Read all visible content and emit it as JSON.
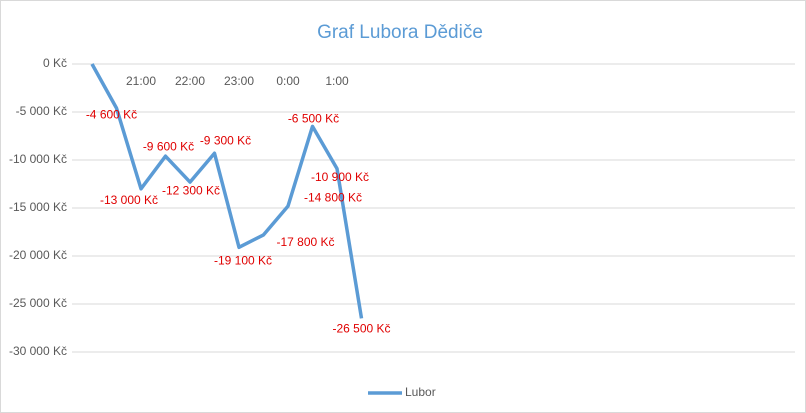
{
  "chart_data": {
    "type": "line",
    "title": "Graf Lubora Dědiče",
    "categories": [
      null,
      null,
      "21:00",
      null,
      "22:00",
      null,
      "23:00",
      null,
      "0:00",
      null,
      "1:00",
      null
    ],
    "series": [
      {
        "name": "Lubor",
        "color": "#5b9bd5",
        "values": [
          0,
          -4600,
          -13000,
          -9600,
          -12300,
          -9300,
          -19100,
          -17800,
          -14800,
          -6500,
          -10900,
          -26500
        ],
        "value_labels": [
          null,
          "-4 600 Kč",
          "-13 000 Kč",
          "-9 600 Kč",
          "-12 300 Kč",
          "-9 300 Kč",
          "-19 100 Kč",
          "-17 800 Kč",
          "-14 800 Kč",
          "-6 500 Kč",
          "-10 900 Kč",
          "-26 500 Kč"
        ],
        "label_color": "#e00000"
      }
    ],
    "ylim": [
      -30000,
      0
    ],
    "yticks": [
      {
        "value": 0,
        "label": "0 Kč"
      },
      {
        "value": -5000,
        "label": "-5 000 Kč"
      },
      {
        "value": -10000,
        "label": "-10 000 Kč"
      },
      {
        "value": -15000,
        "label": "-15 000 Kč"
      },
      {
        "value": -20000,
        "label": "-20 000 Kč"
      },
      {
        "value": -25000,
        "label": "-25 000 Kč"
      },
      {
        "value": -30000,
        "label": "-30 000 Kč"
      }
    ],
    "grid": true,
    "legend": "bottom"
  }
}
